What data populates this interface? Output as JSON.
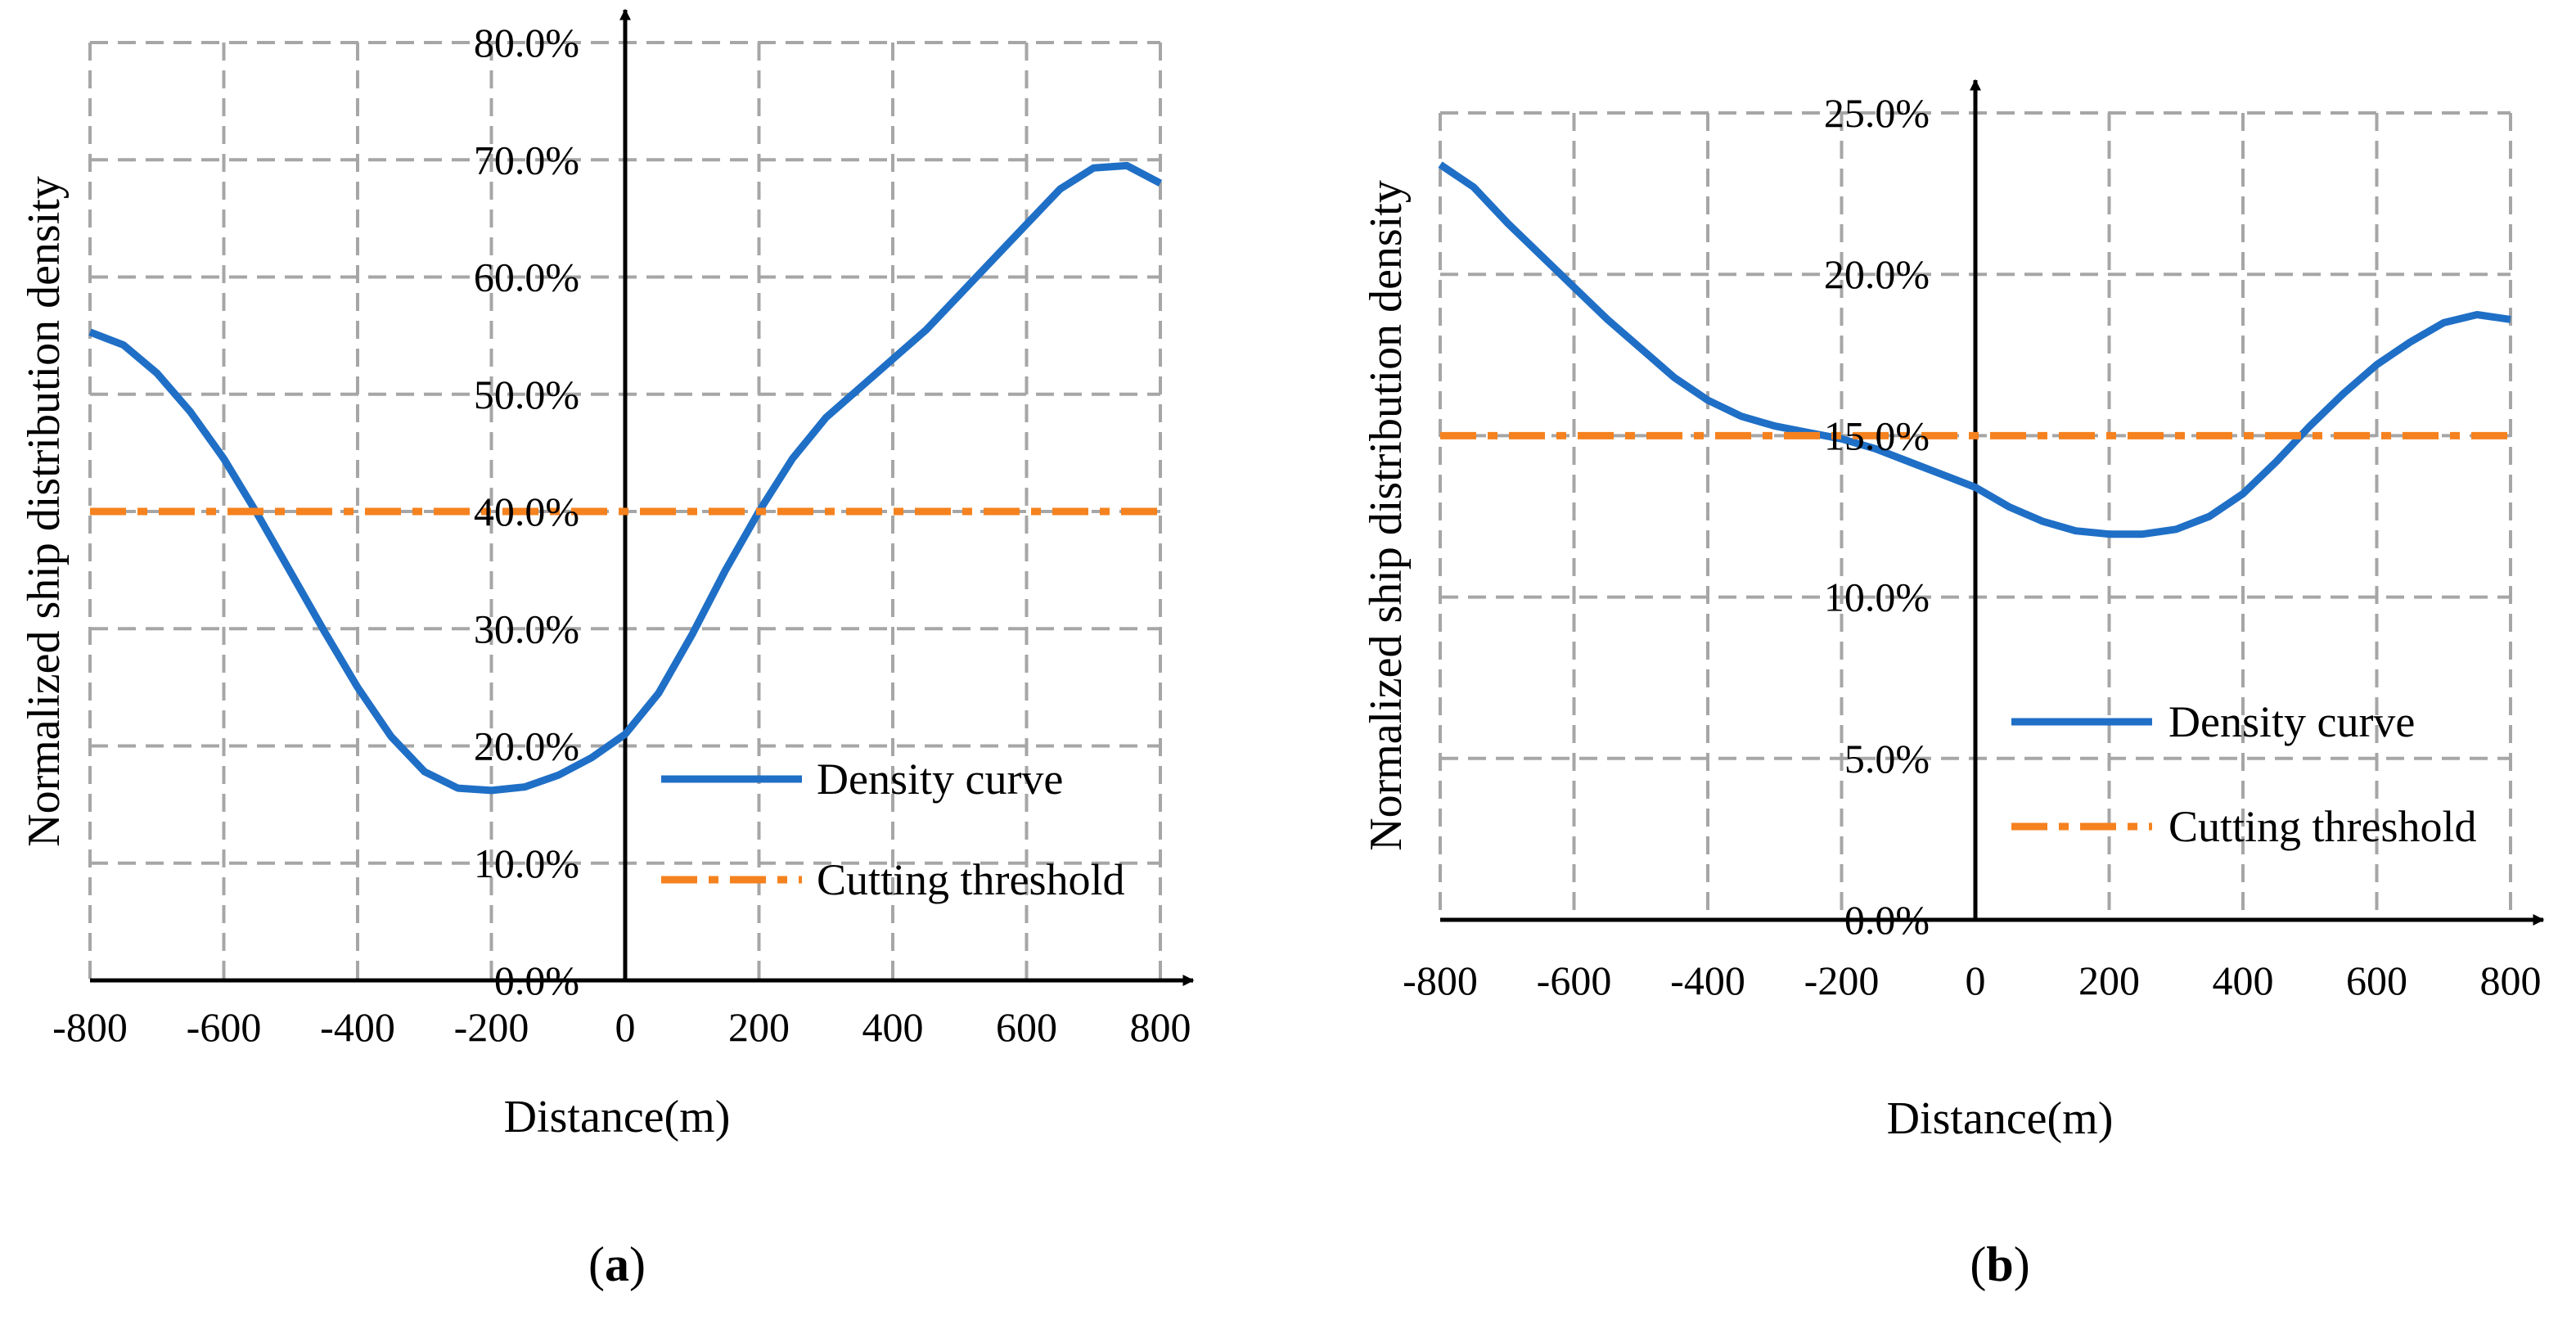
{
  "chart_data": [
    {
      "type": "line",
      "panel_label": "(a)",
      "panel_letter": "a",
      "xlabel": "Distance(m)",
      "ylabel": "Normalized ship distribution density",
      "xlim": [
        -800,
        800
      ],
      "ylim": [
        0,
        80
      ],
      "xticks": [
        -800,
        -600,
        -400,
        -200,
        0,
        200,
        400,
        600,
        800
      ],
      "xtick_labels": [
        "-800",
        "-600",
        "-400",
        "-200",
        "0",
        "200",
        "400",
        "600",
        "800"
      ],
      "yticks": [
        0,
        10,
        20,
        30,
        40,
        50,
        60,
        70,
        80
      ],
      "ytick_labels": [
        "0.0%",
        "10.0%",
        "20.0%",
        "30.0%",
        "40.0%",
        "50.0%",
        "60.0%",
        "70.0%",
        "80.0%"
      ],
      "grid": true,
      "legend_position": "bottom-right",
      "series": [
        {
          "name": "Density curve",
          "style": "solid",
          "color": "#1f6fc6",
          "x": [
            -800,
            -750,
            -700,
            -650,
            -600,
            -550,
            -500,
            -450,
            -400,
            -350,
            -300,
            -250,
            -200,
            -150,
            -100,
            -50,
            0,
            50,
            100,
            150,
            200,
            250,
            300,
            350,
            400,
            450,
            500,
            550,
            600,
            650,
            700,
            750,
            800
          ],
          "y": [
            55.3,
            54.2,
            51.8,
            48.5,
            44.5,
            39.8,
            34.8,
            29.8,
            25.0,
            20.8,
            17.8,
            16.4,
            16.2,
            16.5,
            17.5,
            19.0,
            21.0,
            24.5,
            29.5,
            35.0,
            40.0,
            44.5,
            48.0,
            50.5,
            53.0,
            55.5,
            58.5,
            61.5,
            64.5,
            67.5,
            69.3,
            69.5,
            68.0
          ]
        },
        {
          "name": "Cutting threshold",
          "style": "dash-dot",
          "color": "#f5821f",
          "x": [
            -800,
            800
          ],
          "y": [
            40,
            40
          ]
        }
      ]
    },
    {
      "type": "line",
      "panel_label": "(b)",
      "panel_letter": "b",
      "xlabel": "Distance(m)",
      "ylabel": "Normalized ship distribution density",
      "xlim": [
        -800,
        800
      ],
      "ylim": [
        0,
        25
      ],
      "xticks": [
        -800,
        -600,
        -400,
        -200,
        0,
        200,
        400,
        600,
        800
      ],
      "xtick_labels": [
        "-800",
        "-600",
        "-400",
        "-200",
        "0",
        "200",
        "400",
        "600",
        "800"
      ],
      "yticks": [
        0,
        5,
        10,
        15,
        20,
        25
      ],
      "ytick_labels": [
        "0.0%",
        "5.0%",
        "10.0%",
        "15.0%",
        "20.0%",
        "25.0%"
      ],
      "grid": true,
      "legend_position": "bottom-right",
      "series": [
        {
          "name": "Density curve",
          "style": "solid",
          "color": "#1f6fc6",
          "x": [
            -800,
            -750,
            -700,
            -650,
            -600,
            -550,
            -500,
            -450,
            -400,
            -350,
            -300,
            -250,
            -200,
            -150,
            -100,
            -50,
            0,
            50,
            100,
            150,
            200,
            250,
            300,
            350,
            400,
            450,
            500,
            550,
            600,
            650,
            700,
            750,
            800
          ],
          "y": [
            23.4,
            22.7,
            21.6,
            20.6,
            19.6,
            18.6,
            17.7,
            16.8,
            16.1,
            15.6,
            15.3,
            15.1,
            14.9,
            14.6,
            14.2,
            13.8,
            13.4,
            12.8,
            12.35,
            12.05,
            11.95,
            11.95,
            12.1,
            12.5,
            13.2,
            14.2,
            15.3,
            16.3,
            17.2,
            17.9,
            18.5,
            18.75,
            18.6
          ]
        },
        {
          "name": "Cutting threshold",
          "style": "dash-dot",
          "color": "#f5821f",
          "x": [
            -800,
            800
          ],
          "y": [
            15,
            15
          ]
        }
      ]
    }
  ]
}
